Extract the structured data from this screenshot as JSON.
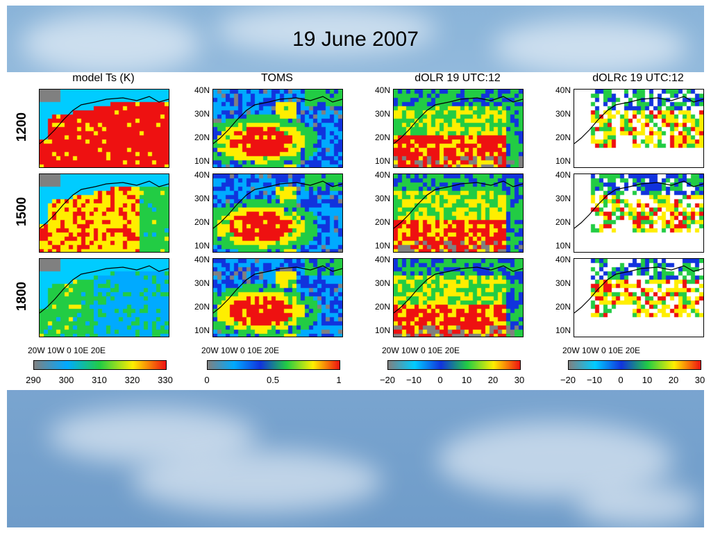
{
  "slide": {
    "title": "19 June 2007"
  },
  "columns": [
    {
      "title": "model Ts (K)",
      "colorbar_ticks": [
        "290",
        "300",
        "310",
        "320",
        "330"
      ],
      "palette": [
        "#808080",
        "#00aaff",
        "#22cc44",
        "#ffee00",
        "#ee1111"
      ],
      "lat_labels": false
    },
    {
      "title": "TOMS",
      "colorbar_ticks": [
        "0",
        "0.5",
        "1"
      ],
      "palette": [
        "#808080",
        "#00aaff",
        "#1133dd",
        "#22cc44",
        "#ffee00",
        "#ee1111"
      ],
      "lat_labels": true
    },
    {
      "title": "dOLR  19  UTC:12",
      "colorbar_ticks": [
        "−20",
        "−10",
        "0",
        "10",
        "20",
        "30"
      ],
      "palette": [
        "#808080",
        "#00ccff",
        "#1133dd",
        "#22cc44",
        "#ffee00",
        "#ee1111"
      ],
      "lat_labels": true
    },
    {
      "title": "dOLRc  19  UTC:12",
      "colorbar_ticks": [
        "−20",
        "−10",
        "0",
        "10",
        "20",
        "30"
      ],
      "palette": [
        "#808080",
        "#00ccff",
        "#1133dd",
        "#22cc44",
        "#ffee00",
        "#ee1111"
      ],
      "lat_labels": true
    }
  ],
  "rows": [
    "1200",
    "1500",
    "1800"
  ],
  "lat_labels": [
    "40N",
    "30N",
    "20N",
    "10N"
  ],
  "lon_labels": "20W 10W   0   10E  20E",
  "colors": {
    "sea": "#00ccff",
    "land_gray": "#808080",
    "white": "#ffffff"
  }
}
